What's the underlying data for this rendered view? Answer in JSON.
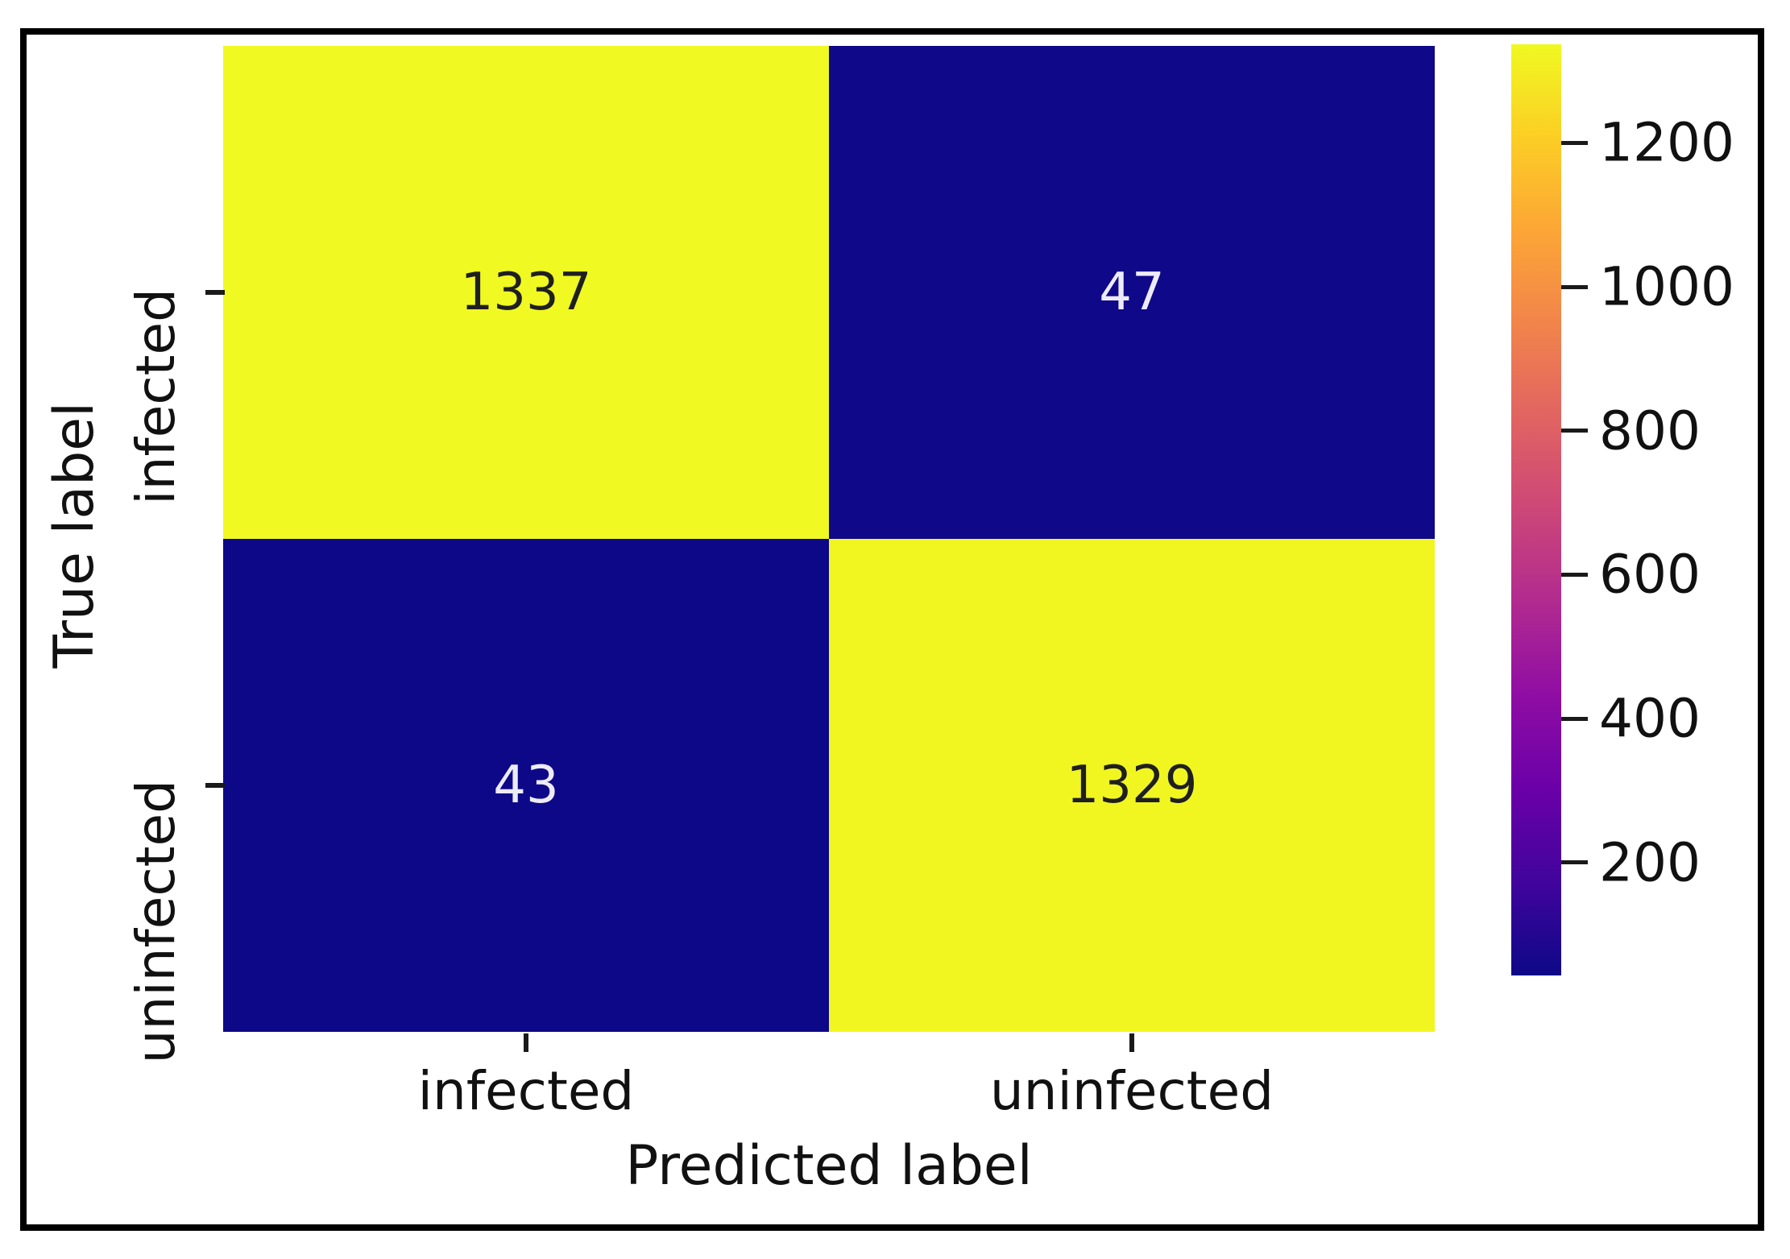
{
  "figure": {
    "description": "Confusion matrix heatmap with colorbar"
  },
  "chart_data": {
    "type": "heatmap",
    "title": "",
    "xlabel": "Predicted label",
    "ylabel": "True label",
    "x_categories": [
      "infected",
      "uninfected"
    ],
    "y_categories": [
      "infected",
      "uninfected"
    ],
    "matrix": [
      [
        1337,
        47
      ],
      [
        43,
        1329
      ]
    ],
    "annotations": true,
    "colormap": "plasma",
    "vmin": 43,
    "vmax": 1337,
    "colorbar_position": "right",
    "colorbar_ticks": [
      200,
      400,
      600,
      800,
      1000,
      1200
    ],
    "grid": false,
    "legend": false
  },
  "colors": {
    "plasma_stops": [
      "#0d0887",
      "#41049d",
      "#6a00a8",
      "#8f0da4",
      "#b12a90",
      "#cc4778",
      "#e16462",
      "#f2844b",
      "#fca636",
      "#fcce25",
      "#f0f921"
    ],
    "annotation_dark_text": "#1f1f1f",
    "annotation_light_text": "#edebf8",
    "axis_text": "#111111",
    "frame_border": "#000000",
    "background": "#ffffff"
  }
}
